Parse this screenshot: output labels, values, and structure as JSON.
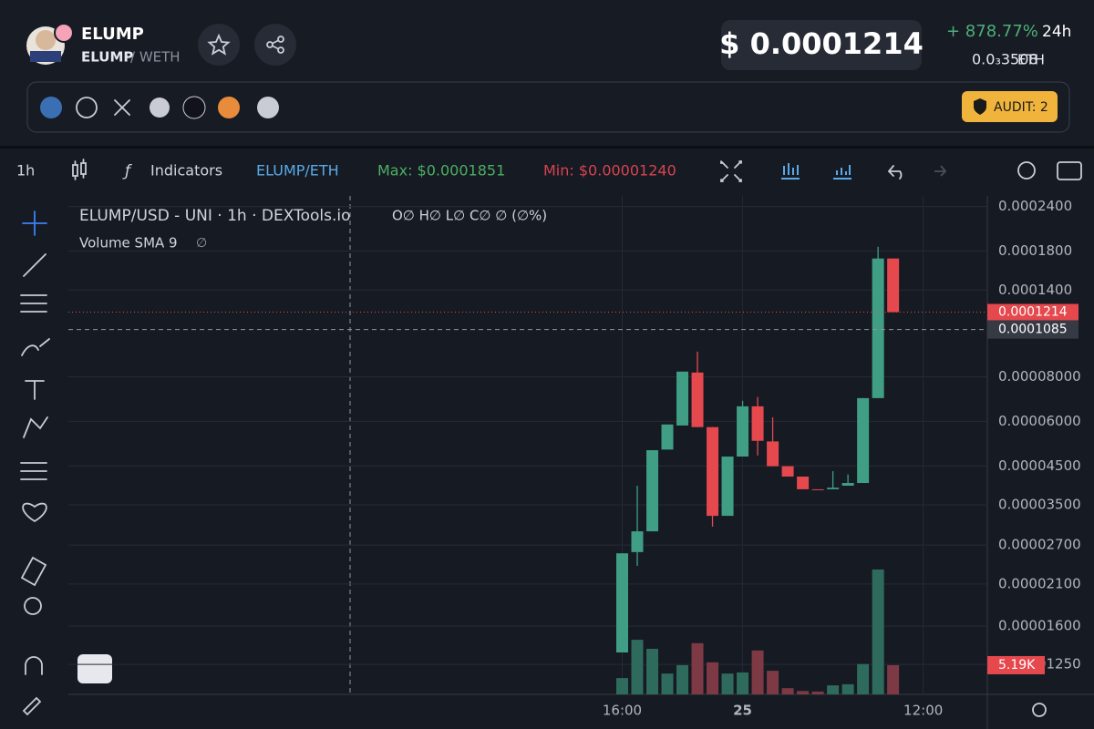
{
  "header": {
    "token": "ELUMP",
    "pair_base": "ELUMP",
    "pair_quote": "/ WETH",
    "price": "$ 0.0001214",
    "change": "+ 878.77%",
    "period": "24h",
    "eth_price": "0.0₃3508",
    "eth_unit": "ETH",
    "audit": "AUDIT: 2"
  },
  "toolbar": {
    "interval": "1h",
    "indicators": "Indicators",
    "pair": "ELUMP/ETH",
    "max": "Max: $0.0001851",
    "min": "Min: $0.00001240"
  },
  "chart_data": {
    "type": "candlestick",
    "title": "ELUMP/USD - UNI · 1h · DEXTools.io",
    "ohlc_legend": "O∅ H∅ L∅ C∅ ∅ (∅%)",
    "volume_legend": "Volume SMA 9",
    "volume_legend_value": "∅",
    "x": [
      16,
      17,
      18,
      19,
      20,
      21,
      22,
      23,
      24,
      25,
      26,
      27,
      28,
      29,
      30,
      31,
      32,
      33,
      34
    ],
    "xlim": [
      -20.8,
      40.2
    ],
    "xticks": [
      {
        "value": 16,
        "label": "16:00"
      },
      {
        "value": 24,
        "label": "25"
      },
      {
        "value": 36,
        "label": "12:00"
      }
    ],
    "open": [
      1.35e-05,
      2.58e-05,
      2.95e-05,
      5e-05,
      5.84e-05,
      8.22e-05,
      5.78e-05,
      3.26e-05,
      4.78e-05,
      6.61e-05,
      5.27e-05,
      4.49e-05,
      4.2e-05,
      3.87e-05,
      3.87e-05,
      3.96e-05,
      4.03e-05,
      6.97e-05,
      0.0001716
    ],
    "high": [
      2.56e-05,
      3.96e-05,
      4.98e-05,
      5.88e-05,
      8.27e-05,
      9.41e-05,
      5.78e-05,
      4.78e-05,
      6.85e-05,
      7.02e-05,
      6.16e-05,
      4.49e-05,
      4.2e-05,
      3.87e-05,
      4.35e-05,
      4.26e-05,
      6.97e-05,
      0.0001851,
      0.0001716
    ],
    "low": [
      1.35e-05,
      2.36e-05,
      2.95e-05,
      5e-05,
      5.84e-05,
      5.78e-05,
      3.04e-05,
      3.26e-05,
      4.78e-05,
      4.81e-05,
      4.49e-05,
      4.2e-05,
      3.87e-05,
      3.86e-05,
      3.87e-05,
      3.96e-05,
      4.03e-05,
      6.97e-05,
      0.0001214
    ],
    "close": [
      2.56e-05,
      2.95e-05,
      4.98e-05,
      5.88e-05,
      8.27e-05,
      5.78e-05,
      3.26e-05,
      4.78e-05,
      6.61e-05,
      5.29e-05,
      4.49e-05,
      4.2e-05,
      3.87e-05,
      3.86e-05,
      3.91e-05,
      4.03e-05,
      6.97e-05,
      0.0001716,
      0.0001214
    ],
    "volume": [
      2.9,
      9.7,
      8.1,
      3.7,
      5.2,
      9.1,
      5.7,
      3.7,
      3.9,
      7.8,
      4.2,
      1.1,
      0.6,
      0.5,
      1.6,
      1.8,
      5.4,
      22.2,
      5.19
    ],
    "volume_value_labels": [
      null,
      null,
      null,
      null,
      null,
      null,
      null,
      null,
      null,
      null,
      null,
      null,
      null,
      null,
      null,
      null,
      null,
      null,
      "5.19K"
    ],
    "volume_lim": [
      0,
      32.4
    ],
    "ylim": [
      1.03e-05,
      0.000257
    ],
    "log_scale": true,
    "yticks": [
      {
        "value": 0.00024,
        "label": "0.0002400"
      },
      {
        "value": 0.00018,
        "label": "0.0001800"
      },
      {
        "value": 0.00014,
        "label": "0.0001400"
      },
      {
        "value": 8e-05,
        "label": "0.00008000"
      },
      {
        "value": 6e-05,
        "label": "0.00006000"
      },
      {
        "value": 4.5e-05,
        "label": "0.00004500"
      },
      {
        "value": 3.5e-05,
        "label": "0.00003500"
      },
      {
        "value": 2.7e-05,
        "label": "0.00002700"
      },
      {
        "value": 2.1e-05,
        "label": "0.00002100"
      },
      {
        "value": 1.6e-05,
        "label": "0.00001600"
      },
      {
        "value": 1.25e-05,
        "label": "0.00001250"
      }
    ],
    "last_price_label": "0.0001214",
    "crosshair": {
      "value": 0.0001085,
      "label": "0.0001085"
    },
    "grid": true,
    "up_color": "#3f9e84",
    "down_color": "#e5484d",
    "volume_up_color": "#2f6b5d",
    "volume_down_color": "#7d3a45"
  }
}
